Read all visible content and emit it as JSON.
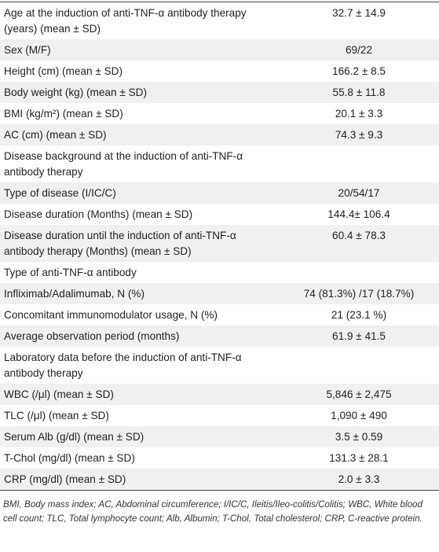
{
  "table": {
    "rows": [
      {
        "label": "Age at the induction of anti-TNF-α antibody therapy (years) (mean ± SD)",
        "value": "32.7 ± 14.9"
      },
      {
        "label": "Sex (M/F)",
        "value": "69/22"
      },
      {
        "label": "Height (cm) (mean ± SD)",
        "value": "166.2 ± 8.5"
      },
      {
        "label": "Body weight (kg) (mean ± SD)",
        "value": "55.8 ± 11.8"
      },
      {
        "label": "BMI (kg/m²) (mean ± SD)",
        "value": "20.1 ± 3.3"
      },
      {
        "label": "AC (cm) (mean ± SD)",
        "value": "74.3 ± 9.3"
      },
      {
        "label": "Disease background at the induction of anti-TNF-α antibody therapy"
      },
      {
        "label": "Type of disease (I/IC/C)",
        "value": "20/54/17"
      },
      {
        "label": "Disease duration (Months) (mean ± SD)",
        "value": "144.4± 106.4"
      },
      {
        "label": "Disease duration until the induction of anti-TNF-α antibody therapy (Months) (mean ± SD)",
        "value": "60.4 ± 78.3"
      },
      {
        "label": "Type of anti-TNF-α antibody"
      },
      {
        "label": "Infliximab/Adalimumab, N (%)",
        "value": "74 (81.3%) /17 (18.7%)"
      },
      {
        "label": "Concomitant immunomodulator usage, N (%)",
        "value": "21 (23.1 %)"
      },
      {
        "label": "Average observation period (months)",
        "value": "61.9 ± 41.5"
      },
      {
        "label": "Laboratory data before the induction of anti-TNF-α antibody therapy"
      },
      {
        "label": "WBC (/μl) (mean ± SD)",
        "value": "5,846 ± 2,475"
      },
      {
        "label": "TLC (/μl) (mean ± SD)",
        "value": "1,090 ± 490"
      },
      {
        "label": "Serum Alb (g/dl) (mean ± SD)",
        "value": "3.5 ± 0.59"
      },
      {
        "label": "T-Chol (mg/dl) (mean ± SD)",
        "value": "131.3 ± 28.1"
      },
      {
        "label": "CRP (mg/dl) (mean ± SD)",
        "value": "2.0 ± 3.3"
      }
    ]
  },
  "footnote": "BMI, Body mass index; AC, Abdominal circumference; I/IC/C, Ileitis/Ileo-colitis/Colitis; WBC, White blood cell count; TLC, Total lymphocyte count; Alb, Albumin; T-Chol, Total cholesterol; CRP, C-reactive protein."
}
